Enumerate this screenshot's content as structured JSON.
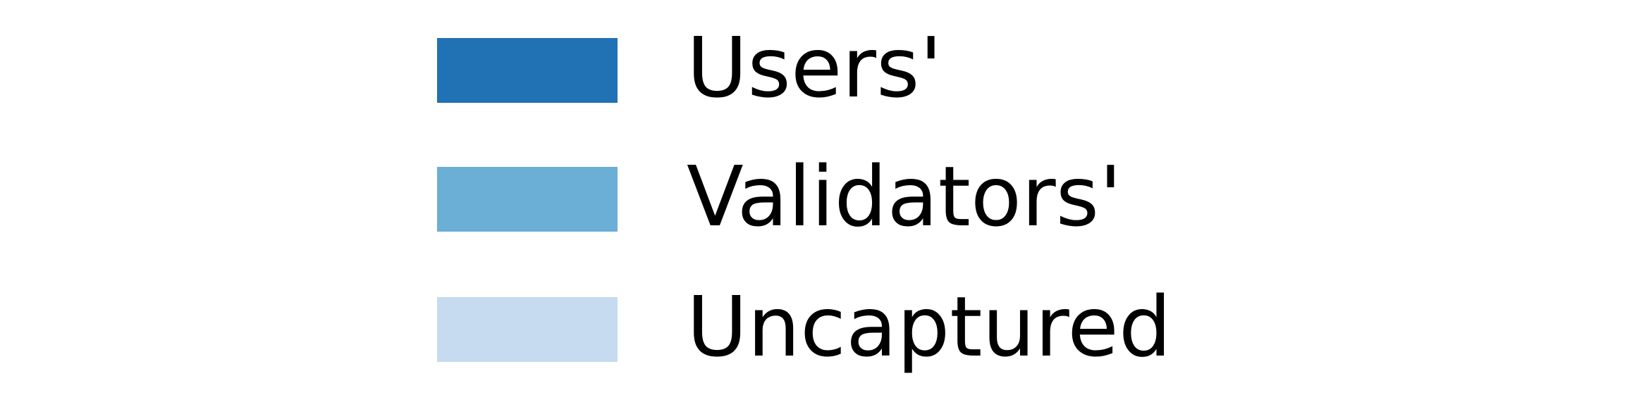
{
  "chart_data": {
    "type": "bar",
    "legend": {
      "placement": "center",
      "entries": [
        {
          "label": "Users'",
          "color": "#2171b5"
        },
        {
          "label": "Validators'",
          "color": "#6baed6"
        },
        {
          "label": "Uncaptured",
          "color": "#c6dbef"
        }
      ]
    }
  }
}
